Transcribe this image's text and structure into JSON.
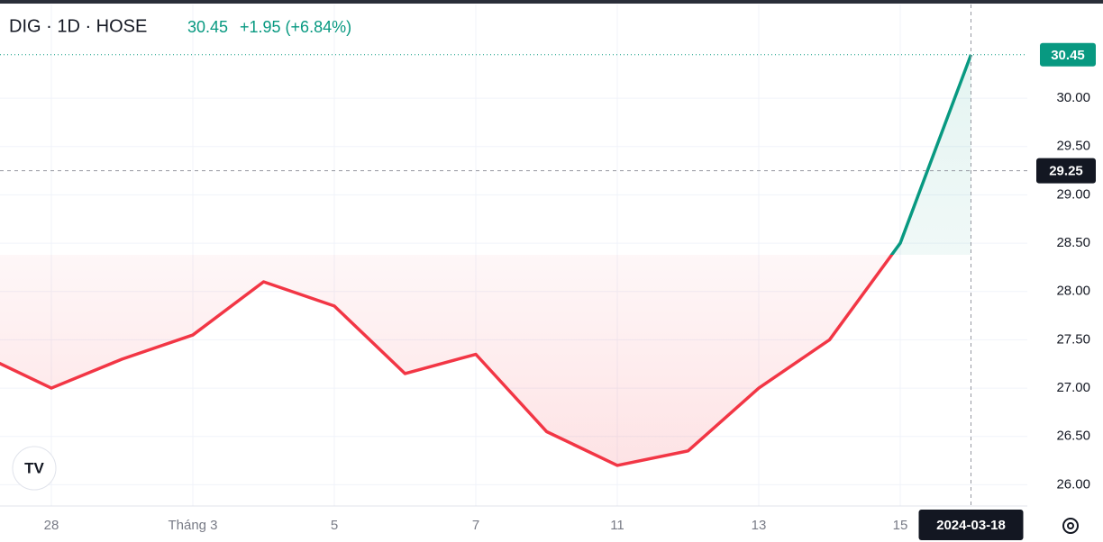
{
  "chart_data": {
    "type": "baseline",
    "symbol": "DIG · 1D · HOSE",
    "price_text": "30.45",
    "change_text": "+1.95 (+6.84%)",
    "categories": [
      null,
      "28",
      null,
      "Tháng 3",
      null,
      "5",
      null,
      "7",
      null,
      "11",
      null,
      "13",
      null,
      "15",
      "2024-03-18"
    ],
    "values": [
      27.35,
      27.0,
      27.3,
      27.55,
      28.1,
      27.85,
      27.15,
      27.35,
      26.55,
      26.2,
      26.35,
      27.0,
      27.5,
      28.5,
      30.45
    ],
    "baseline": 28.38,
    "up_color": "#089981",
    "down_color": "#f23645",
    "ylim": [
      25.78,
      30.97
    ],
    "yticks": [
      {
        "value": 26,
        "label": "26.00"
      },
      {
        "value": 26.5,
        "label": "26.50"
      },
      {
        "value": 27,
        "label": "27.00"
      },
      {
        "value": 27.5,
        "label": "27.50"
      },
      {
        "value": 28,
        "label": "28.00"
      },
      {
        "value": 28.5,
        "label": "28.50"
      },
      {
        "value": 29,
        "label": "29.00"
      },
      {
        "value": 29.5,
        "label": "29.50"
      },
      {
        "value": 30,
        "label": "30.00"
      }
    ],
    "last_price": {
      "value": 30.45,
      "label": "30.45"
    },
    "crosshair": {
      "value": 29.25,
      "label": "29.25",
      "index": 14
    },
    "grid": true
  }
}
